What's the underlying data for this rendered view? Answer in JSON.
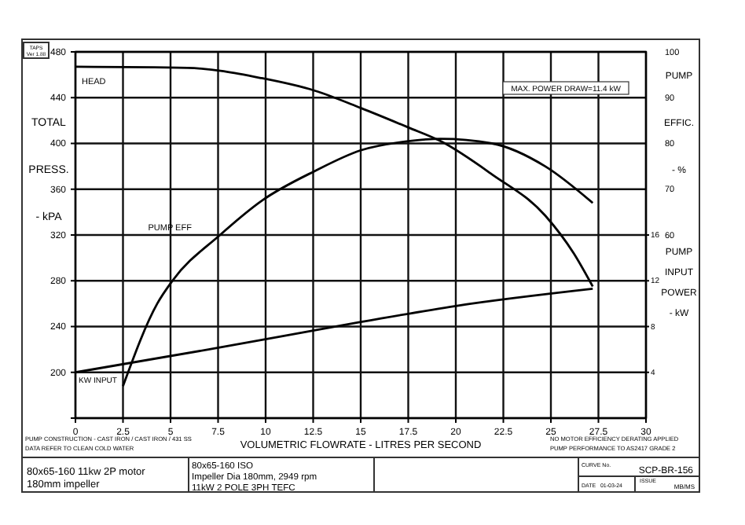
{
  "chart_data": {
    "type": "line",
    "xlabel": "VOLUMETRIC FLOWRATE - LITRES PER SECOND",
    "ylabel": "TOTAL PRESS. - kPA",
    "y2label": "PUMP EFFIC. - %",
    "y3label": "PUMP INPUT POWER - kW",
    "xlim": [
      0,
      30
    ],
    "xticks": [
      0,
      2.5,
      5,
      7.5,
      10,
      12.5,
      15,
      17.5,
      20,
      22.5,
      25,
      27.5,
      30
    ],
    "ylim": [
      160,
      480
    ],
    "yticks": [
      {
        "value": 160,
        "label": null
      },
      200,
      240,
      280,
      320,
      360,
      400,
      440,
      480
    ],
    "y2lim": [
      20,
      100
    ],
    "y2ticks": [
      60,
      70,
      80,
      90,
      100
    ],
    "y3lim": [
      0,
      32
    ],
    "y3ticks": [
      4,
      8,
      12,
      16
    ],
    "grid": true,
    "line_style": "solid",
    "series": [
      {
        "name": "HEAD",
        "color": "#000000",
        "x": [
          0,
          5.9,
          9.8,
          12.6,
          15.0,
          17.5,
          19.2,
          21.9,
          24.7,
          26.2,
          27.2
        ],
        "values": [
          467,
          466,
          457,
          446,
          431,
          414,
          402,
          373,
          337,
          304,
          275
        ]
      },
      {
        "name": "PUMP EFF",
        "color": "#000000",
        "axis": "y2",
        "x": [
          2.5,
          4.3,
          5.1,
          7.6,
          9.8,
          12.6,
          15.0,
          17.5,
          19.2,
          21.9,
          24.7,
          27.2
        ],
        "values": [
          27,
          45,
          50,
          60,
          67.5,
          74,
          78.5,
          80.5,
          81,
          80,
          75,
          67
        ]
      },
      {
        "name": "KW INPUT",
        "color": "#000000",
        "axis": "y3",
        "x": [
          0,
          7.0,
          15.0,
          20.0,
          27.2
        ],
        "values": [
          4.0,
          6.0,
          8.4,
          9.8,
          11.3
        ]
      }
    ],
    "annotations": [
      "TAPS Ver 1.88",
      "MAX. POWER DRAW=11.4 kW",
      "PUMP CONSTRUCTION - CAST IRON / CAST IRON / 431 SS",
      "DATA REFER TO CLEAN COLD WATER",
      "NO MOTOR EFFICIENCY DERATING APPLIED",
      "PUMP PERFORMANCE TO AS2417 GRADE 2",
      "80x65-160 11kw 2P motor",
      "180mm impeller",
      "80x65-160 ISO",
      "Impeller Dia 180mm, 2949 rpm",
      "11kW 2 POLE 3PH TEFC",
      "CURVE No.",
      "SCP-BR-156",
      "DATE",
      "01-03-24",
      "ISSUE",
      "MB/MS"
    ]
  }
}
